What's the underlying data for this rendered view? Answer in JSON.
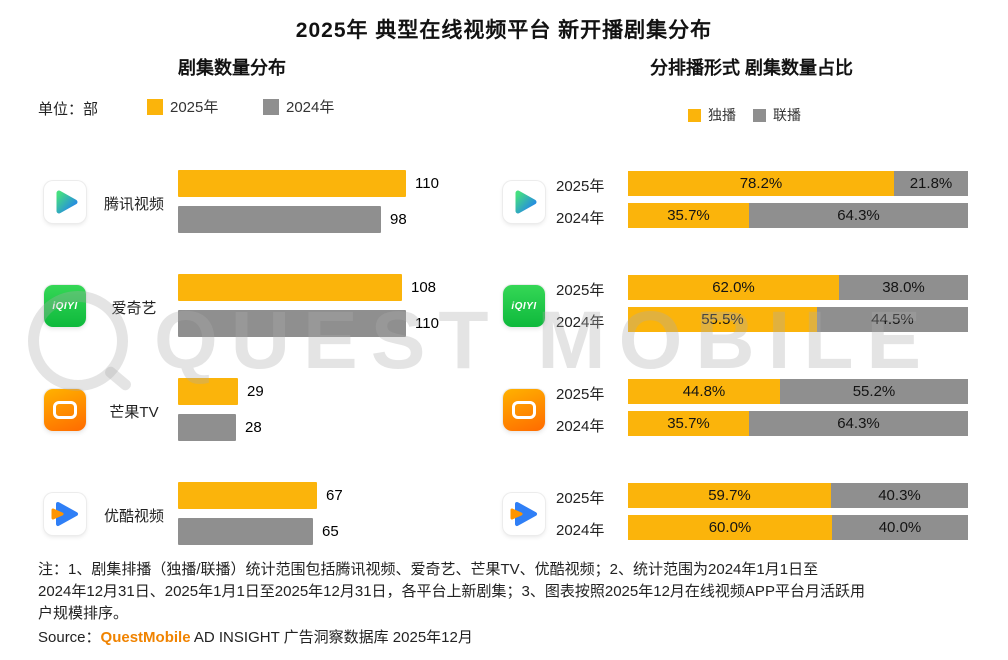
{
  "title": "2025年 典型在线视频平台 新开播剧集分布",
  "colors": {
    "yellow": "#FBB40B",
    "gray": "#8F8F8F",
    "source_orange": "#F08300"
  },
  "left_chart": {
    "subtitle": "剧集数量分布",
    "unit_label": "单位：部",
    "legend": [
      {
        "label": "2025年",
        "color": "#FBB40B"
      },
      {
        "label": "2024年",
        "color": "#8F8F8F"
      }
    ]
  },
  "right_chart": {
    "subtitle": "分排播形式 剧集数量占比",
    "legend": [
      {
        "key": "exclusive",
        "label": "独播",
        "color": "#FBB40B"
      },
      {
        "key": "joint",
        "label": "联播",
        "color": "#8F8F8F"
      }
    ]
  },
  "icons": {
    "iqiyi_label": "iQIYI"
  },
  "chart_data": [
    {
      "type": "bar",
      "orientation": "horizontal",
      "title": "剧集数量分布",
      "unit": "部",
      "categories": [
        "腾讯视频",
        "爱奇艺",
        "芒果TV",
        "优酷视频"
      ],
      "series": [
        {
          "name": "2025年",
          "color": "#FBB40B",
          "values": [
            110,
            108,
            29,
            67
          ]
        },
        {
          "name": "2024年",
          "color": "#8F8F8F",
          "values": [
            98,
            110,
            28,
            65
          ]
        }
      ],
      "xlim": [
        0,
        115
      ],
      "grid": false,
      "legend_position": "top"
    },
    {
      "type": "bar",
      "orientation": "horizontal",
      "stacked": true,
      "title": "分排播形式 剧集数量占比",
      "unit": "%",
      "series_names": [
        "独播",
        "联播"
      ],
      "groups": [
        {
          "platform": "腾讯视频",
          "rows": [
            {
              "label": "2025年",
              "exclusive": 78.2,
              "joint": 21.8
            },
            {
              "label": "2024年",
              "exclusive": 35.7,
              "joint": 64.3
            }
          ]
        },
        {
          "platform": "爱奇艺",
          "rows": [
            {
              "label": "2025年",
              "exclusive": 62.0,
              "joint": 38.0
            },
            {
              "label": "2024年",
              "exclusive": 55.5,
              "joint": 44.5
            }
          ]
        },
        {
          "platform": "芒果TV",
          "rows": [
            {
              "label": "2025年",
              "exclusive": 44.8,
              "joint": 55.2
            },
            {
              "label": "2024年",
              "exclusive": 35.7,
              "joint": 64.3
            }
          ]
        },
        {
          "platform": "优酷视频",
          "rows": [
            {
              "label": "2025年",
              "exclusive": 59.7,
              "joint": 40.3
            },
            {
              "label": "2024年",
              "exclusive": 60.0,
              "joint": 40.0
            }
          ]
        }
      ],
      "xlim": [
        0,
        100
      ],
      "grid": false,
      "legend_position": "top"
    }
  ],
  "notes": [
    "注：1、剧集排播（独播/联播）统计范围包括腾讯视频、爱奇艺、芒果TV、优酷视频；2、统计范围为2024年1月1日至",
    "2024年12月31日、2025年1月1日至2025年12月31日，各平台上新剧集；3、图表按照2025年12月在线视频APP平台月活跃用",
    "户规模排序。"
  ],
  "source": {
    "prefix": "Source：",
    "brand": "QuestMobile",
    "rest": " AD INSIGHT 广告洞察数据库 2025年12月"
  },
  "watermark": {
    "text": "QUEST MOBILE"
  }
}
